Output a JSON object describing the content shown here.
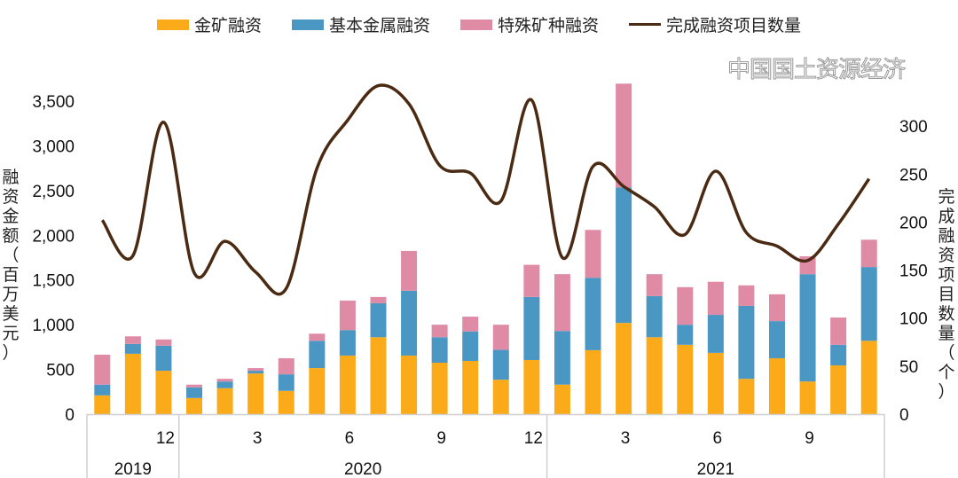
{
  "chart_data": {
    "type": "bar",
    "stacked": true,
    "categories": [
      "2019-10",
      "2019-11",
      "2019-12",
      "2020-01",
      "2020-02",
      "2020-03",
      "2020-04",
      "2020-05",
      "2020-06",
      "2020-07",
      "2020-08",
      "2020-09",
      "2020-10",
      "2020-11",
      "2020-12",
      "2021-01",
      "2021-02",
      "2021-03",
      "2021-04",
      "2021-05",
      "2021-06",
      "2021-07",
      "2021-08",
      "2021-09",
      "2021-10",
      "2021-11"
    ],
    "x_tick_labels": [
      "",
      "",
      "12",
      "",
      "",
      "3",
      "",
      "",
      "6",
      "",
      "",
      "9",
      "",
      "",
      "12",
      "",
      "",
      "3",
      "",
      "",
      "6",
      "",
      "",
      "9",
      "",
      ""
    ],
    "year_groups": [
      {
        "label": "2019",
        "count": 3
      },
      {
        "label": "2020",
        "count": 12
      },
      {
        "label": "2021",
        "count": 11
      }
    ],
    "series": [
      {
        "name": "金矿融资",
        "axis": "left",
        "color": "#FBAA19",
        "values": [
          210,
          675,
          485,
          180,
          290,
          455,
          260,
          515,
          655,
          860,
          655,
          575,
          595,
          385,
          605,
          330,
          715,
          1020,
          860,
          775,
          685,
          395,
          625,
          365,
          545,
          820
        ]
      },
      {
        "name": "基本金属融资",
        "axis": "left",
        "color": "#4B97C4",
        "values": [
          120,
          110,
          280,
          120,
          75,
          30,
          185,
          305,
          285,
          380,
          725,
          285,
          330,
          335,
          705,
          600,
          810,
          1515,
          460,
          225,
          425,
          815,
          415,
          1200,
          230,
          825
        ]
      },
      {
        "name": "特殊矿种融资",
        "axis": "left",
        "color": "#E08BA5",
        "values": [
          335,
          85,
          70,
          30,
          30,
          30,
          180,
          80,
          330,
          70,
          445,
          140,
          165,
          280,
          360,
          635,
          535,
          1160,
          245,
          420,
          370,
          230,
          300,
          200,
          305,
          305
        ]
      },
      {
        "name": "完成融资项目数量",
        "type": "line",
        "smooth": true,
        "axis": "right",
        "color": "#4A2A12",
        "values": [
          202,
          165,
          304,
          147,
          180,
          148,
          131,
          256,
          306,
          342,
          323,
          259,
          251,
          222,
          327,
          163,
          258,
          237,
          216,
          187,
          253,
          189,
          175,
          160,
          198,
          245
        ]
      }
    ],
    "ylabel": "融资金额（百万美元）",
    "y2label": "完成融资项目数量（个）",
    "ylim": [
      0,
      3500
    ],
    "yticks": [
      "0",
      "500",
      "1,000",
      "1,500",
      "2,000",
      "2,500",
      "3,000",
      "3,500"
    ],
    "y2lim": [
      0,
      325
    ],
    "y2ticks": [
      "0",
      "50",
      "100",
      "150",
      "200",
      "250",
      "300"
    ],
    "legend_position": "top",
    "grid": false
  },
  "watermark": "中国国土资源经济"
}
